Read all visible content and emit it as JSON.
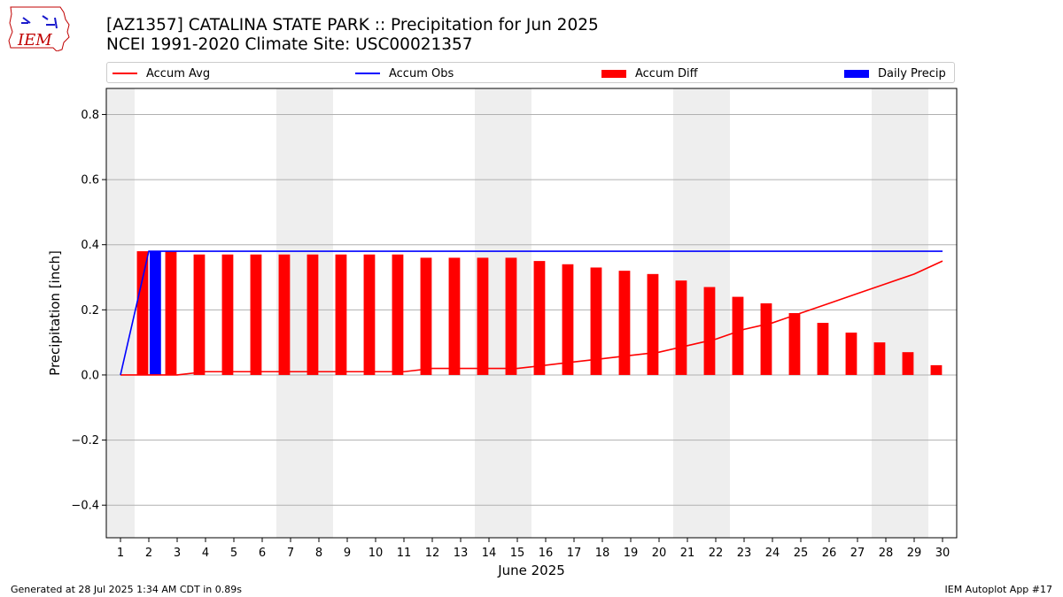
{
  "header": {
    "title_line1": "[AZ1357] CATALINA STATE PARK :: Precipitation for Jun 2025",
    "title_line2": "NCEI 1991-2020 Climate Site: USC00021357",
    "logo_text": "IEM"
  },
  "footer": {
    "left": "Generated at 28 Jul 2025 1:34 AM CDT in 0.89s",
    "right": "IEM Autoplot App #17"
  },
  "legend": [
    {
      "label": "Accum Avg",
      "kind": "line",
      "color": "#ff0000"
    },
    {
      "label": "Accum Obs",
      "kind": "line",
      "color": "#0000ff"
    },
    {
      "label": "Accum Diff",
      "kind": "patch",
      "color": "#ff0000"
    },
    {
      "label": "Daily Precip",
      "kind": "patch",
      "color": "#0000ff"
    }
  ],
  "chart_data": {
    "type": "bar",
    "xlabel": "June 2025",
    "ylabel": "Precipitation [inch]",
    "xlim": [
      0.5,
      30.5
    ],
    "ylim": [
      -0.5,
      0.88
    ],
    "yticks": [
      -0.4,
      -0.2,
      0.0,
      0.2,
      0.4,
      0.6,
      0.8
    ],
    "ytick_labels": [
      "−0.4",
      "−0.2",
      "0.0",
      "0.2",
      "0.4",
      "0.6",
      "0.8"
    ],
    "grid": true,
    "weekend_shading": [
      [
        0.5,
        1.5
      ],
      [
        6.5,
        8.5
      ],
      [
        13.5,
        15.5
      ],
      [
        20.5,
        22.5
      ],
      [
        27.5,
        29.5
      ]
    ],
    "x": [
      1,
      2,
      3,
      4,
      5,
      6,
      7,
      8,
      9,
      10,
      11,
      12,
      13,
      14,
      15,
      16,
      17,
      18,
      19,
      20,
      21,
      22,
      23,
      24,
      25,
      26,
      27,
      28,
      29,
      30
    ],
    "series": [
      {
        "name": "Accum Avg",
        "kind": "line",
        "color": "#ff0000",
        "values": [
          0.0,
          0.0,
          0.0,
          0.01,
          0.01,
          0.01,
          0.01,
          0.01,
          0.01,
          0.01,
          0.01,
          0.02,
          0.02,
          0.02,
          0.02,
          0.03,
          0.04,
          0.05,
          0.06,
          0.07,
          0.09,
          0.11,
          0.14,
          0.16,
          0.19,
          0.22,
          0.25,
          0.28,
          0.31,
          0.35
        ]
      },
      {
        "name": "Accum Obs",
        "kind": "line",
        "color": "#0000ff",
        "values": [
          0.0,
          0.38,
          0.38,
          0.38,
          0.38,
          0.38,
          0.38,
          0.38,
          0.38,
          0.38,
          0.38,
          0.38,
          0.38,
          0.38,
          0.38,
          0.38,
          0.38,
          0.38,
          0.38,
          0.38,
          0.38,
          0.38,
          0.38,
          0.38,
          0.38,
          0.38,
          0.38,
          0.38,
          0.38,
          0.38
        ]
      },
      {
        "name": "Accum Diff",
        "kind": "bar",
        "color": "#ff0000",
        "values": [
          0.0,
          0.38,
          0.38,
          0.37,
          0.37,
          0.37,
          0.37,
          0.37,
          0.37,
          0.37,
          0.37,
          0.36,
          0.36,
          0.36,
          0.36,
          0.35,
          0.34,
          0.33,
          0.32,
          0.31,
          0.29,
          0.27,
          0.24,
          0.22,
          0.19,
          0.16,
          0.13,
          0.1,
          0.07,
          0.03
        ]
      },
      {
        "name": "Daily Precip",
        "kind": "bar",
        "color": "#0000ff",
        "values": [
          0,
          0.38,
          0,
          0,
          0,
          0,
          0,
          0,
          0,
          0,
          0,
          0,
          0,
          0,
          0,
          0,
          0,
          0,
          0,
          0,
          0,
          0,
          0,
          0,
          0,
          0,
          0,
          0,
          0,
          0
        ]
      }
    ]
  }
}
